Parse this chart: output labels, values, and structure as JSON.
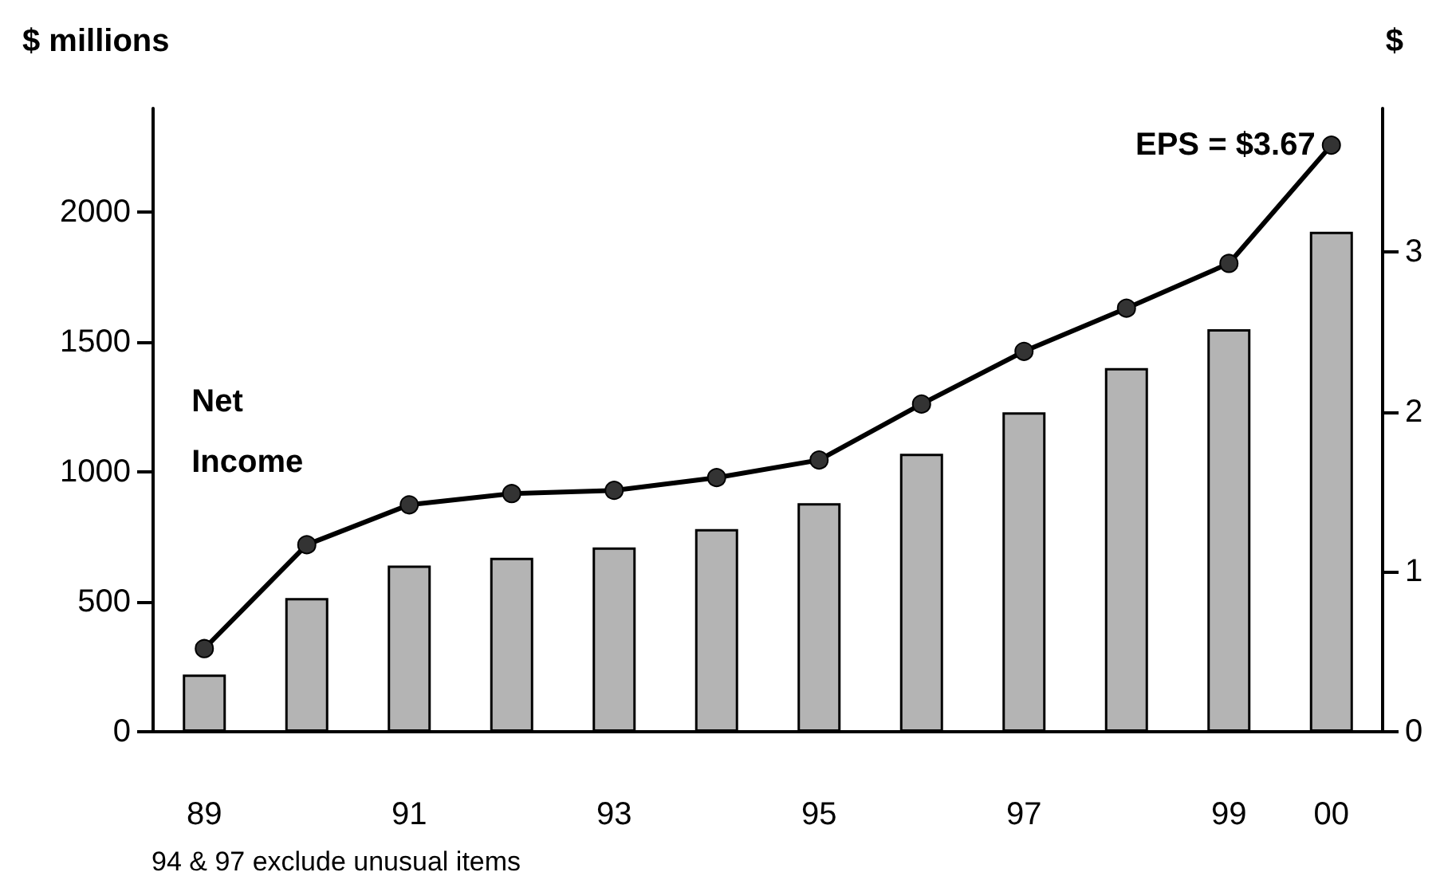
{
  "chart_data": {
    "type": "bar",
    "ylabel": "$ millions",
    "y2label": "$",
    "categories": [
      "89",
      null,
      "91",
      null,
      "93",
      null,
      "95",
      null,
      "97",
      null,
      "99",
      "00"
    ],
    "series": [
      {
        "name": "Net Income",
        "color": "#b4b4b4",
        "values": [
          220,
          515,
          640,
          670,
          710,
          780,
          880,
          1070,
          1230,
          1400,
          1550,
          1925
        ]
      },
      {
        "type": "line",
        "axis": "y2",
        "color": "#000000",
        "values": [
          0.52,
          1.17,
          1.42,
          1.49,
          1.51,
          1.59,
          1.7,
          2.05,
          2.38,
          2.65,
          2.93,
          3.67
        ]
      }
    ],
    "ylim": [
      0,
      2400
    ],
    "yticks": [
      0,
      500,
      1000,
      1500,
      2000
    ],
    "y2lim": [
      0,
      3.9
    ],
    "y2ticks": [
      0,
      1,
      2,
      3
    ],
    "marker": "circle",
    "line_style": "solid",
    "grid": false,
    "legend": false,
    "annotations": [
      "EPS = $3.67",
      "94 & 97 exclude unusual items"
    ]
  }
}
